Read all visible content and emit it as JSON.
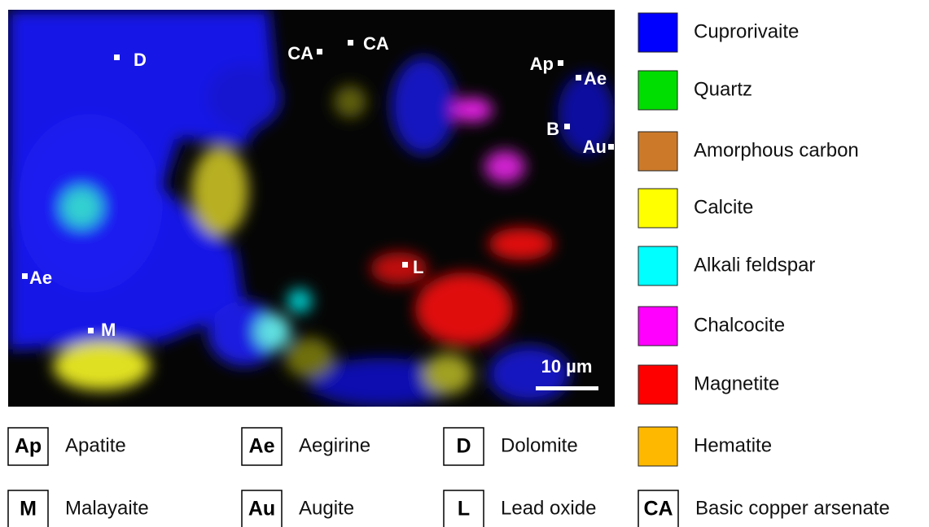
{
  "map_labels": [
    "D",
    "CA",
    "CA",
    "Ap",
    "Ae",
    "B",
    "Au",
    "Ae",
    "M",
    "L"
  ],
  "scale_bar": "10 µm",
  "color_legend": [
    {
      "label": "Cuprorivaite",
      "color": "#0000ff"
    },
    {
      "label": "Quartz",
      "color": "#00dd00"
    },
    {
      "label": "Amorphous carbon",
      "color": "#cc7a2a"
    },
    {
      "label": "Calcite",
      "color": "#ffff00"
    },
    {
      "label": "Alkali feldspar",
      "color": "#00ffff"
    },
    {
      "label": "Chalcocite",
      "color": "#ff00ff"
    },
    {
      "label": "Magnetite",
      "color": "#ff0000"
    },
    {
      "label": "Hematite",
      "color": "#ffb800"
    }
  ],
  "abbreviation_legend": [
    {
      "abbr": "Ap",
      "name": "Apatite"
    },
    {
      "abbr": "Ae",
      "name": "Aegirine"
    },
    {
      "abbr": "D",
      "name": "Dolomite"
    },
    {
      "abbr": "M",
      "name": "Malayaite"
    },
    {
      "abbr": "Au",
      "name": "Augite"
    },
    {
      "abbr": "L",
      "name": "Lead oxide"
    },
    {
      "abbr": "CA",
      "name": "Basic copper arsenate"
    }
  ]
}
